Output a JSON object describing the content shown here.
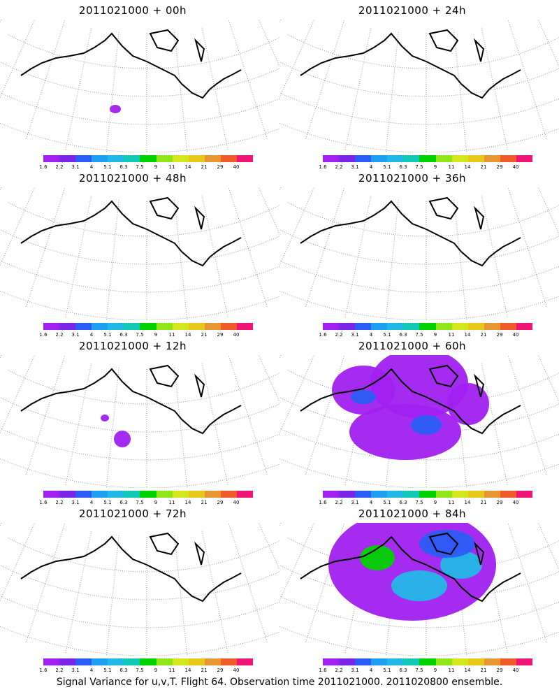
{
  "panels": [
    {
      "title": "2011021000 + 00h",
      "blobs": [
        [
          165,
          128,
          8,
          6,
          "#a020f0"
        ]
      ]
    },
    {
      "title": "2011021000 + 48h",
      "blobs": [
        [
          490,
          62,
          30,
          20,
          "#a020f0"
        ],
        [
          580,
          40,
          40,
          30,
          "#a020f0"
        ],
        [
          600,
          110,
          30,
          35,
          "#a020f0"
        ],
        [
          555,
          140,
          50,
          20,
          "#a020f0"
        ],
        [
          600,
          135,
          12,
          10,
          "#2a5cf5"
        ],
        [
          680,
          90,
          12,
          10,
          "#a020f0"
        ]
      ]
    },
    {
      "title": "2011021000 + 12h",
      "blobs": [
        [
          175,
          120,
          12,
          12,
          "#a020f0"
        ],
        [
          150,
          90,
          6,
          5,
          "#a020f0"
        ]
      ]
    },
    {
      "title": "2011021000 + 60h",
      "blobs": [
        [
          520,
          50,
          45,
          35,
          "#a020f0"
        ],
        [
          600,
          40,
          70,
          50,
          "#a020f0"
        ],
        [
          580,
          110,
          80,
          40,
          "#a020f0"
        ],
        [
          520,
          60,
          18,
          10,
          "#2a5cf5"
        ],
        [
          610,
          100,
          22,
          14,
          "#2a5cf5"
        ],
        [
          670,
          70,
          30,
          30,
          "#a020f0"
        ]
      ]
    },
    {
      "title": "2011021000 + 24h",
      "blobs": [
        [
          190,
          120,
          25,
          20,
          "#a020f0"
        ],
        [
          200,
          80,
          12,
          10,
          "#a020f0"
        ]
      ]
    },
    {
      "title": "2011021000 + 36h",
      "blobs": [
        [
          190,
          90,
          30,
          45,
          "#a020f0"
        ],
        [
          175,
          50,
          15,
          10,
          "#a020f0"
        ],
        [
          205,
          100,
          12,
          8,
          "#2a5cf5"
        ]
      ]
    },
    {
      "title": "2011021000 + 72h",
      "blobs": [
        [
          560,
          70,
          100,
          60,
          "#a020f0"
        ],
        [
          520,
          50,
          25,
          18,
          "#22b8e6"
        ],
        [
          600,
          85,
          30,
          16,
          "#22b8e6"
        ],
        [
          640,
          60,
          35,
          20,
          "#2a5cf5"
        ]
      ]
    },
    {
      "title": "2011021000 + 84h",
      "blobs": [
        [
          590,
          60,
          120,
          80,
          "#a020f0"
        ],
        [
          540,
          50,
          25,
          18,
          "#00d200"
        ],
        [
          600,
          90,
          40,
          22,
          "#22b8e6"
        ],
        [
          660,
          60,
          30,
          20,
          "#22b8e6"
        ],
        [
          640,
          30,
          40,
          20,
          "#2a5cf5"
        ]
      ]
    }
  ],
  "colorbar": {
    "labels": [
      "1.6",
      "2.2",
      "3.1",
      "4",
      "5.1",
      "6.3",
      "7.5",
      "9",
      "11",
      "14",
      "21",
      "29",
      "40"
    ],
    "colors": [
      "#a020f0",
      "#7a24e6",
      "#2a5cf5",
      "#1ea0f0",
      "#22b8e6",
      "#11c8b4",
      "#00d200",
      "#8ee61a",
      "#d2e61a",
      "#e6c81a",
      "#e69632",
      "#f05a28",
      "#f01478"
    ]
  },
  "footer": "Signal Variance for u,v,T. Flight 64. Observation time 2011021000. 2011020800 ensemble."
}
